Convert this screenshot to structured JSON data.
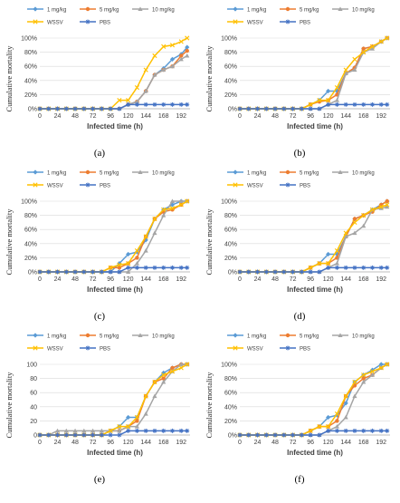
{
  "figure": {
    "x_ticks": [
      0,
      24,
      48,
      72,
      96,
      120,
      144,
      168,
      192
    ],
    "y_ticks_pct": [
      "0%",
      "20%",
      "40%",
      "60%",
      "80%",
      "100%"
    ],
    "y_ticks_num": [
      "0",
      "20",
      "40",
      "60",
      "80",
      "100"
    ]
  },
  "series_style": [
    {
      "name": "1 mg/kg",
      "color": "#5B9BD5",
      "marker": "diamond"
    },
    {
      "name": "5 mg/kg",
      "color": "#ED7D31",
      "marker": "circle"
    },
    {
      "name": "10 mg/kg",
      "color": "#A5A5A5",
      "marker": "triangle"
    },
    {
      "name": "WSSV",
      "color": "#FFC000",
      "marker": "x"
    },
    {
      "name": "PBS",
      "color": "#4472C4",
      "marker": "star"
    }
  ],
  "chart_data": [
    {
      "type": "line",
      "panel_label": "(a)",
      "xlabel": "Infected time (h)",
      "ylabel": "Cumulative mortality",
      "ylim": [
        0,
        100
      ],
      "y_tick_style": "percent",
      "legend": "top",
      "x": [
        0,
        12,
        24,
        36,
        48,
        60,
        72,
        84,
        96,
        108,
        120,
        132,
        144,
        156,
        168,
        180,
        192,
        200
      ],
      "series": [
        {
          "name": "1 mg/kg",
          "values": [
            0,
            0,
            0,
            0,
            0,
            0,
            0,
            0,
            0,
            0,
            6,
            10,
            25,
            48,
            57,
            70,
            77,
            87
          ]
        },
        {
          "name": "5 mg/kg",
          "values": [
            0,
            0,
            0,
            0,
            0,
            0,
            0,
            0,
            0,
            0,
            6,
            10,
            25,
            48,
            55,
            60,
            75,
            82
          ]
        },
        {
          "name": "10 mg/kg",
          "values": [
            0,
            0,
            0,
            0,
            0,
            0,
            0,
            0,
            0,
            0,
            6,
            10,
            25,
            48,
            55,
            60,
            70,
            75
          ]
        },
        {
          "name": "WSSV",
          "values": [
            0,
            0,
            0,
            0,
            0,
            0,
            0,
            0,
            0,
            12,
            12,
            30,
            55,
            75,
            88,
            90,
            95,
            100
          ]
        },
        {
          "name": "PBS",
          "values": [
            0,
            0,
            0,
            0,
            0,
            0,
            0,
            0,
            0,
            0,
            6,
            6,
            6,
            6,
            6,
            6,
            6,
            6
          ]
        }
      ]
    },
    {
      "type": "line",
      "panel_label": "(b)",
      "xlabel": "Infected time (h)",
      "ylabel": "Cumulative mortality",
      "ylim": [
        0,
        100
      ],
      "y_tick_style": "percent",
      "legend": "top",
      "x": [
        0,
        12,
        24,
        36,
        48,
        60,
        72,
        84,
        96,
        108,
        120,
        132,
        144,
        156,
        168,
        180,
        192,
        200
      ],
      "series": [
        {
          "name": "1 mg/kg",
          "values": [
            0,
            0,
            0,
            0,
            0,
            0,
            0,
            0,
            6,
            12,
            25,
            25,
            50,
            58,
            85,
            88,
            95,
            100
          ]
        },
        {
          "name": "5 mg/kg",
          "values": [
            0,
            0,
            0,
            0,
            0,
            0,
            0,
            0,
            6,
            10,
            12,
            20,
            50,
            58,
            85,
            88,
            95,
            100
          ]
        },
        {
          "name": "10 mg/kg",
          "values": [
            0,
            0,
            0,
            0,
            0,
            0,
            0,
            0,
            0,
            0,
            6,
            12,
            50,
            55,
            80,
            85,
            95,
            100
          ]
        },
        {
          "name": "WSSV",
          "values": [
            0,
            0,
            0,
            0,
            0,
            0,
            0,
            0,
            6,
            12,
            12,
            30,
            55,
            70,
            80,
            88,
            95,
            100
          ]
        },
        {
          "name": "PBS",
          "values": [
            0,
            0,
            0,
            0,
            0,
            0,
            0,
            0,
            0,
            0,
            6,
            6,
            6,
            6,
            6,
            6,
            6,
            6
          ]
        }
      ]
    },
    {
      "type": "line",
      "panel_label": "(c)",
      "xlabel": "Infected time (h)",
      "ylabel": "Cumulative mortality",
      "ylim": [
        0,
        100
      ],
      "y_tick_style": "percent",
      "legend": "top",
      "x": [
        0,
        12,
        24,
        36,
        48,
        60,
        72,
        84,
        96,
        108,
        120,
        132,
        144,
        156,
        168,
        180,
        192,
        200
      ],
      "series": [
        {
          "name": "1 mg/kg",
          "values": [
            0,
            0,
            0,
            0,
            0,
            0,
            0,
            0,
            0,
            12,
            25,
            28,
            45,
            75,
            88,
            95,
            100,
            100
          ]
        },
        {
          "name": "5 mg/kg",
          "values": [
            0,
            0,
            0,
            0,
            0,
            0,
            0,
            0,
            6,
            6,
            12,
            20,
            50,
            75,
            85,
            88,
            95,
            100
          ]
        },
        {
          "name": "10 mg/kg",
          "values": [
            0,
            0,
            0,
            0,
            0,
            0,
            0,
            0,
            0,
            0,
            0,
            12,
            30,
            55,
            80,
            100,
            100,
            100
          ]
        },
        {
          "name": "WSSV",
          "values": [
            0,
            0,
            0,
            0,
            0,
            0,
            0,
            0,
            6,
            10,
            12,
            30,
            50,
            75,
            88,
            90,
            95,
            100
          ]
        },
        {
          "name": "PBS",
          "values": [
            0,
            0,
            0,
            0,
            0,
            0,
            0,
            0,
            0,
            0,
            6,
            6,
            6,
            6,
            6,
            6,
            6,
            6
          ]
        }
      ]
    },
    {
      "type": "line",
      "panel_label": "(d)",
      "xlabel": "Infected time (h)",
      "ylabel": "Cumulative mortality",
      "ylim": [
        0,
        100
      ],
      "y_tick_style": "percent",
      "legend": "top",
      "x": [
        0,
        12,
        24,
        36,
        48,
        60,
        72,
        84,
        96,
        108,
        120,
        132,
        144,
        156,
        168,
        180,
        192,
        200
      ],
      "series": [
        {
          "name": "1 mg/kg",
          "values": [
            0,
            0,
            0,
            0,
            0,
            0,
            0,
            0,
            6,
            12,
            25,
            25,
            50,
            75,
            80,
            88,
            95,
            100
          ]
        },
        {
          "name": "5 mg/kg",
          "values": [
            0,
            0,
            0,
            0,
            0,
            0,
            0,
            0,
            6,
            12,
            12,
            20,
            50,
            75,
            80,
            85,
            95,
            100
          ]
        },
        {
          "name": "10 mg/kg",
          "values": [
            0,
            0,
            0,
            0,
            0,
            0,
            0,
            0,
            0,
            0,
            6,
            12,
            50,
            55,
            65,
            88,
            90,
            92
          ]
        },
        {
          "name": "WSSV",
          "values": [
            0,
            0,
            0,
            0,
            0,
            0,
            0,
            0,
            6,
            12,
            12,
            30,
            55,
            70,
            80,
            88,
            92,
            95
          ]
        },
        {
          "name": "PBS",
          "values": [
            0,
            0,
            0,
            0,
            0,
            0,
            0,
            0,
            0,
            0,
            6,
            6,
            6,
            6,
            6,
            6,
            6,
            6
          ]
        }
      ]
    },
    {
      "type": "line",
      "panel_label": "(e)",
      "xlabel": "Infected time (h)",
      "ylabel": "Cumulative mortality",
      "ylim": [
        0,
        100
      ],
      "y_tick_style": "number",
      "legend": "top",
      "x": [
        0,
        12,
        24,
        36,
        48,
        60,
        72,
        84,
        96,
        108,
        120,
        132,
        144,
        156,
        168,
        180,
        192,
        200
      ],
      "series": [
        {
          "name": "1 mg/kg",
          "values": [
            0,
            0,
            0,
            0,
            0,
            0,
            0,
            0,
            6,
            12,
            25,
            25,
            55,
            75,
            88,
            95,
            100,
            100
          ]
        },
        {
          "name": "5 mg/kg",
          "values": [
            0,
            0,
            0,
            0,
            0,
            0,
            0,
            0,
            6,
            6,
            12,
            20,
            55,
            75,
            80,
            95,
            100,
            100
          ]
        },
        {
          "name": "10 mg/kg",
          "values": [
            0,
            0,
            6,
            6,
            6,
            6,
            6,
            6,
            6,
            6,
            12,
            12,
            30,
            55,
            75,
            90,
            100,
            100
          ]
        },
        {
          "name": "WSSV",
          "values": [
            0,
            0,
            0,
            0,
            0,
            0,
            0,
            0,
            6,
            12,
            12,
            25,
            55,
            75,
            85,
            90,
            95,
            100
          ]
        },
        {
          "name": "PBS",
          "values": [
            0,
            0,
            0,
            0,
            0,
            0,
            0,
            0,
            0,
            0,
            6,
            6,
            6,
            6,
            6,
            6,
            6,
            6
          ]
        }
      ]
    },
    {
      "type": "line",
      "panel_label": "(f)",
      "xlabel": "Infected time (h)",
      "ylabel": "Cumulative mortality",
      "ylim": [
        0,
        100
      ],
      "y_tick_style": "percent",
      "legend": "top",
      "x": [
        0,
        12,
        24,
        36,
        48,
        60,
        72,
        84,
        96,
        108,
        120,
        132,
        144,
        156,
        168,
        180,
        192,
        200
      ],
      "series": [
        {
          "name": "1 mg/kg",
          "values": [
            0,
            0,
            0,
            0,
            0,
            0,
            0,
            0,
            6,
            12,
            25,
            28,
            45,
            75,
            85,
            92,
            100,
            100
          ]
        },
        {
          "name": "5 mg/kg",
          "values": [
            0,
            0,
            0,
            0,
            0,
            0,
            0,
            0,
            6,
            12,
            12,
            20,
            55,
            70,
            80,
            85,
            95,
            100
          ]
        },
        {
          "name": "10 mg/kg",
          "values": [
            0,
            0,
            0,
            0,
            0,
            0,
            0,
            0,
            0,
            0,
            6,
            12,
            25,
            55,
            75,
            85,
            95,
            100
          ]
        },
        {
          "name": "WSSV",
          "values": [
            0,
            0,
            0,
            0,
            0,
            0,
            0,
            0,
            6,
            12,
            12,
            30,
            55,
            75,
            85,
            90,
            95,
            100
          ]
        },
        {
          "name": "PBS",
          "values": [
            0,
            0,
            0,
            0,
            0,
            0,
            0,
            0,
            0,
            0,
            6,
            6,
            6,
            6,
            6,
            6,
            6,
            6
          ]
        }
      ]
    }
  ]
}
